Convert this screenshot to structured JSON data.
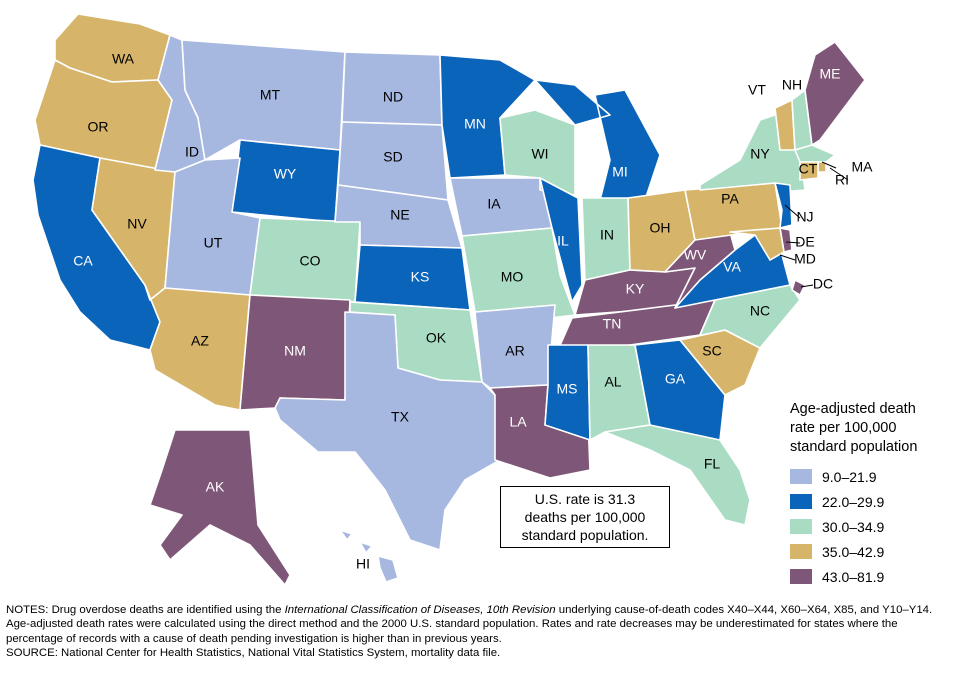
{
  "legend": {
    "title_lines": [
      "Age-adjusted death",
      "rate per 100,000",
      "standard population"
    ],
    "bins": [
      {
        "label": "9.0–21.9",
        "color": "#a6b8e0"
      },
      {
        "label": "22.0–29.9",
        "color": "#0a64b9"
      },
      {
        "label": "30.0–34.9",
        "color": "#a9dcc3"
      },
      {
        "label": "35.0–42.9",
        "color": "#d6b46a"
      },
      {
        "label": "43.0–81.9",
        "color": "#7e5677"
      }
    ]
  },
  "callout": {
    "lines": [
      "U.S. rate is  31.3",
      "deaths per 100,000",
      "standard population."
    ]
  },
  "states": [
    {
      "abbr": "WA",
      "bin": 3
    },
    {
      "abbr": "OR",
      "bin": 3
    },
    {
      "abbr": "CA",
      "bin": 1
    },
    {
      "abbr": "NV",
      "bin": 3
    },
    {
      "abbr": "ID",
      "bin": 0
    },
    {
      "abbr": "MT",
      "bin": 0
    },
    {
      "abbr": "WY",
      "bin": 1
    },
    {
      "abbr": "UT",
      "bin": 0
    },
    {
      "abbr": "AZ",
      "bin": 3
    },
    {
      "abbr": "CO",
      "bin": 2
    },
    {
      "abbr": "NM",
      "bin": 4
    },
    {
      "abbr": "ND",
      "bin": 0
    },
    {
      "abbr": "SD",
      "bin": 0
    },
    {
      "abbr": "NE",
      "bin": 0
    },
    {
      "abbr": "KS",
      "bin": 1
    },
    {
      "abbr": "OK",
      "bin": 2
    },
    {
      "abbr": "TX",
      "bin": 0
    },
    {
      "abbr": "MN",
      "bin": 1
    },
    {
      "abbr": "IA",
      "bin": 0
    },
    {
      "abbr": "MO",
      "bin": 2
    },
    {
      "abbr": "AR",
      "bin": 0
    },
    {
      "abbr": "LA",
      "bin": 4
    },
    {
      "abbr": "WI",
      "bin": 2
    },
    {
      "abbr": "IL",
      "bin": 1
    },
    {
      "abbr": "MI",
      "bin": 1
    },
    {
      "abbr": "IN",
      "bin": 2
    },
    {
      "abbr": "OH",
      "bin": 3
    },
    {
      "abbr": "KY",
      "bin": 4
    },
    {
      "abbr": "TN",
      "bin": 4
    },
    {
      "abbr": "MS",
      "bin": 1
    },
    {
      "abbr": "AL",
      "bin": 2
    },
    {
      "abbr": "GA",
      "bin": 1
    },
    {
      "abbr": "FL",
      "bin": 2
    },
    {
      "abbr": "SC",
      "bin": 3
    },
    {
      "abbr": "NC",
      "bin": 2
    },
    {
      "abbr": "VA",
      "bin": 1
    },
    {
      "abbr": "WV",
      "bin": 4
    },
    {
      "abbr": "PA",
      "bin": 3
    },
    {
      "abbr": "NY",
      "bin": 2
    },
    {
      "abbr": "VT",
      "bin": 3
    },
    {
      "abbr": "NH",
      "bin": 2
    },
    {
      "abbr": "ME",
      "bin": 4
    },
    {
      "abbr": "MA",
      "bin": 2
    },
    {
      "abbr": "RI",
      "bin": 3
    },
    {
      "abbr": "CT",
      "bin": 3
    },
    {
      "abbr": "NJ",
      "bin": 1
    },
    {
      "abbr": "DE",
      "bin": 4
    },
    {
      "abbr": "MD",
      "bin": 3
    },
    {
      "abbr": "DC",
      "bin": 4
    },
    {
      "abbr": "AK",
      "bin": 4
    },
    {
      "abbr": "HI",
      "bin": 0
    }
  ],
  "notes": {
    "line1_prefix": "NOTES: Drug overdose deaths are identified using the ",
    "line1_italic": "International Classification of Diseases, 10th Revision",
    "line1_suffix": " underlying cause-of-death codes X40–X44, X60–X64, X85, and Y10–Y14. Age-adjusted death rates were calculated using the direct method and the 2000 U.S. standard population. Rates and rate decreases may be underestimated for states where the percentage of records with a cause of death pending investigation is higher than in previous years.",
    "source": "SOURCE: National Center for Health Statistics, National Vital Statistics System, mortality data file."
  }
}
